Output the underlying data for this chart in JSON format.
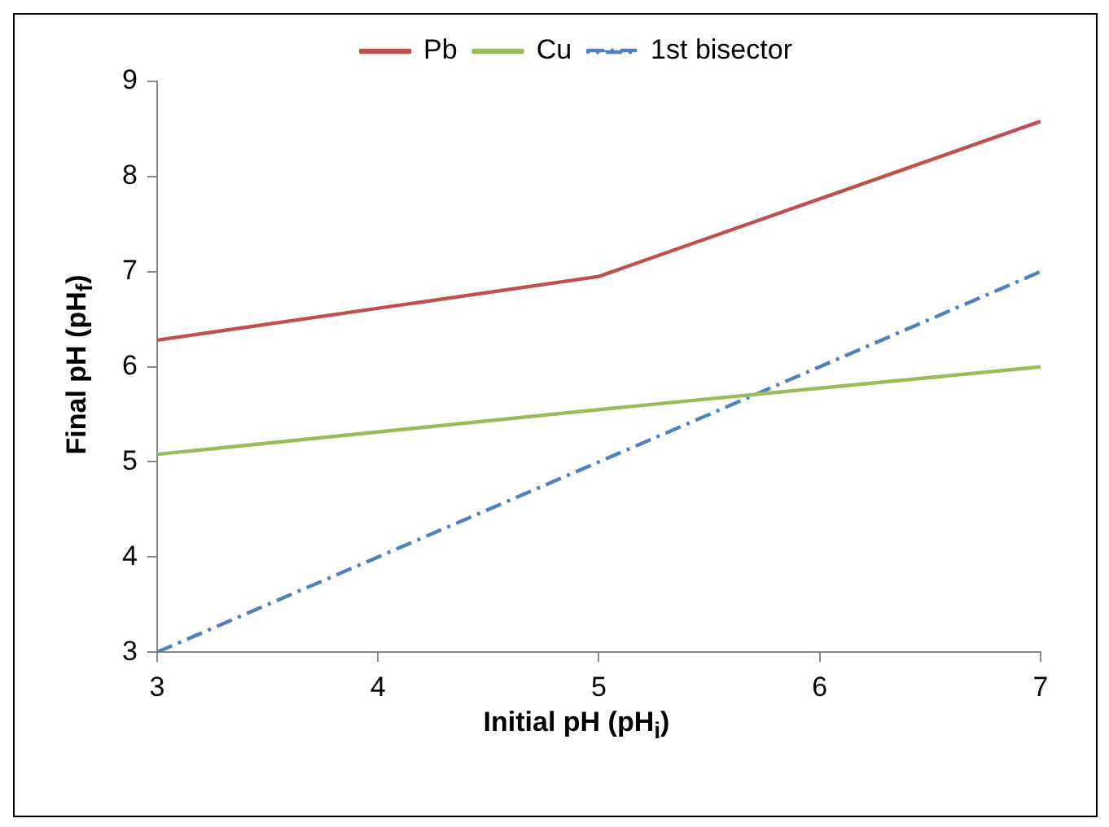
{
  "chart_data": {
    "type": "line",
    "xlabel": "Initial pH (pH$_{i}$)",
    "ylabel": "Final pH (pH$_{f}$)",
    "series": [
      {
        "name": "Pb",
        "color": "#c0504d",
        "x": [
          3,
          5,
          7
        ],
        "values": [
          6.28,
          6.95,
          8.58
        ],
        "line_style": "solid"
      },
      {
        "name": "Cu",
        "color": "#9bbb59",
        "x": [
          3,
          5,
          7
        ],
        "values": [
          5.08,
          5.55,
          6.0
        ],
        "line_style": "solid"
      },
      {
        "name": "1st bisector",
        "color": "#4f81bd",
        "x": [
          3,
          7
        ],
        "values": [
          3,
          7
        ],
        "line_style": "dashed"
      }
    ],
    "xlim": [
      3,
      7
    ],
    "xticks": [
      3,
      4,
      5,
      6,
      7
    ],
    "ylim": [
      3,
      9
    ],
    "yticks": [
      3,
      4,
      5,
      6,
      7,
      8,
      9
    ],
    "grid": false,
    "legend": "top",
    "marker": "none"
  }
}
